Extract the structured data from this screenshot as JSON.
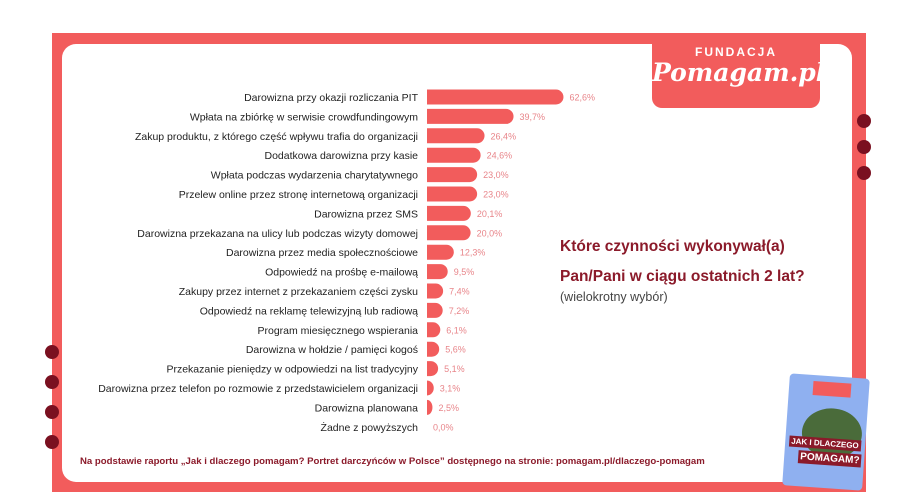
{
  "logo": {
    "line1": "FUNDACJA",
    "line2": "Pomagam.pl"
  },
  "question": {
    "line1": "Które czynności wykonywał(a)",
    "line2": "Pan/Pani w ciągu ostatnich 2 lat?",
    "note": "(wielokrotny wybór)"
  },
  "footer": "Na podstawie raportu „Jak i dlaczego pomagam? Portret darczyńców w Polsce” dostępnego na stronie: pomagam.pl/dlaczego-pomagam",
  "book": {
    "title1": "JAK I DLACZEGO",
    "title2": "POMAGAM?"
  },
  "colors": {
    "bar": "#f25c5c",
    "value": "#e8858a",
    "accent": "#8b1a2a"
  },
  "chart_data": {
    "type": "bar",
    "orientation": "horizontal",
    "categories": [
      "Darowizna przy okazji rozliczania PIT",
      "Wpłata na zbiórkę w serwisie crowdfundingowym",
      "Zakup produktu, z którego część wpływu trafia do organizacji",
      "Dodatkowa darowizna przy kasie",
      "Wpłata podczas wydarzenia charytatywnego",
      "Przelew online przez stronę internetową organizacji",
      "Darowizna przez SMS",
      "Darowizna przekazana na ulicy lub podczas wizyty domowej",
      "Darowizna przez media społecznościowe",
      "Odpowiedź na prośbę e-mailową",
      "Zakupy przez internet z przekazaniem części zysku",
      "Odpowiedź na reklamę telewizyjną lub radiową",
      "Program miesięcznego wspierania",
      "Darowizna w hołdzie / pamięci kogoś",
      "Przekazanie pieniędzy w odpowiedzi na list tradycyjny",
      "Darowizna przez telefon po rozmowie z przedstawicielem organizacji",
      "Darowizna planowana",
      "Żadne z powyższych"
    ],
    "values": [
      62.6,
      39.7,
      26.4,
      24.6,
      23.0,
      23.0,
      20.1,
      20.0,
      12.3,
      9.5,
      7.4,
      7.2,
      6.1,
      5.6,
      5.1,
      3.1,
      2.5,
      0.0
    ],
    "labels": [
      "62,6%",
      "39,7%",
      "26,4%",
      "24,6%",
      "23,0%",
      "23,0%",
      "20,1%",
      "20,0%",
      "12,3%",
      "9,5%",
      "7,4%",
      "7,2%",
      "6,1%",
      "5,6%",
      "5,1%",
      "3,1%",
      "2,5%",
      "0,0%"
    ],
    "unit": "%"
  }
}
